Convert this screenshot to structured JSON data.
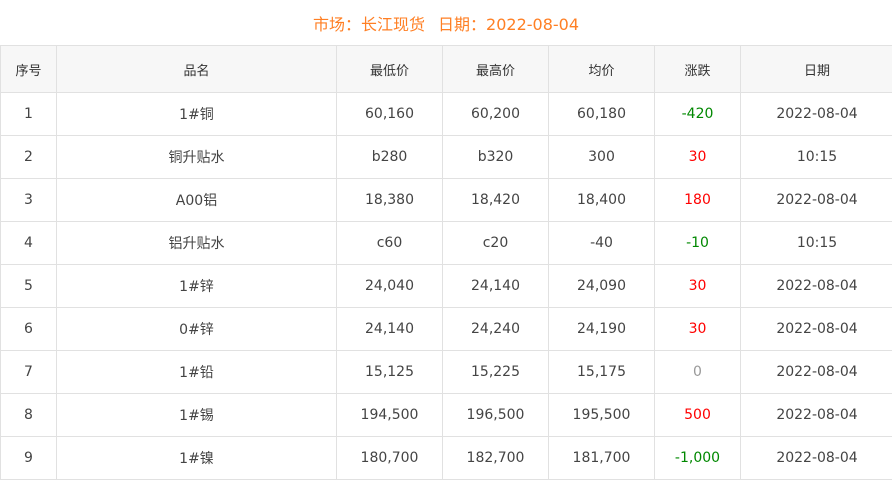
{
  "header": {
    "market_label": "市场：长江现货",
    "date_label": "日期：2022-08-04"
  },
  "columns": [
    "序号",
    "品名",
    "最低价",
    "最高价",
    "均价",
    "涨跌",
    "日期"
  ],
  "colors": {
    "title": "#ff7f24",
    "up": "#ff0000",
    "down": "#008800",
    "flat": "#999999"
  },
  "rows": [
    {
      "no": "1",
      "name": "1#铜",
      "low": "60,160",
      "high": "60,200",
      "avg": "60,180",
      "change": "-420",
      "trend": "down",
      "date": "2022-08-04"
    },
    {
      "no": "2",
      "name": "铜升贴水",
      "low": "b280",
      "high": "b320",
      "avg": "300",
      "change": "30",
      "trend": "up",
      "date": "10:15"
    },
    {
      "no": "3",
      "name": "A00铝",
      "low": "18,380",
      "high": "18,420",
      "avg": "18,400",
      "change": "180",
      "trend": "up",
      "date": "2022-08-04"
    },
    {
      "no": "4",
      "name": "铝升贴水",
      "low": "c60",
      "high": "c20",
      "avg": "-40",
      "change": "-10",
      "trend": "down",
      "date": "10:15"
    },
    {
      "no": "5",
      "name": "1#锌",
      "low": "24,040",
      "high": "24,140",
      "avg": "24,090",
      "change": "30",
      "trend": "up",
      "date": "2022-08-04"
    },
    {
      "no": "6",
      "name": "0#锌",
      "low": "24,140",
      "high": "24,240",
      "avg": "24,190",
      "change": "30",
      "trend": "up",
      "date": "2022-08-04"
    },
    {
      "no": "7",
      "name": "1#铅",
      "low": "15,125",
      "high": "15,225",
      "avg": "15,175",
      "change": "0",
      "trend": "flat",
      "date": "2022-08-04"
    },
    {
      "no": "8",
      "name": "1#锡",
      "low": "194,500",
      "high": "196,500",
      "avg": "195,500",
      "change": "500",
      "trend": "up",
      "date": "2022-08-04"
    },
    {
      "no": "9",
      "name": "1#镍",
      "low": "180,700",
      "high": "182,700",
      "avg": "181,700",
      "change": "-1,000",
      "trend": "down",
      "date": "2022-08-04"
    }
  ]
}
